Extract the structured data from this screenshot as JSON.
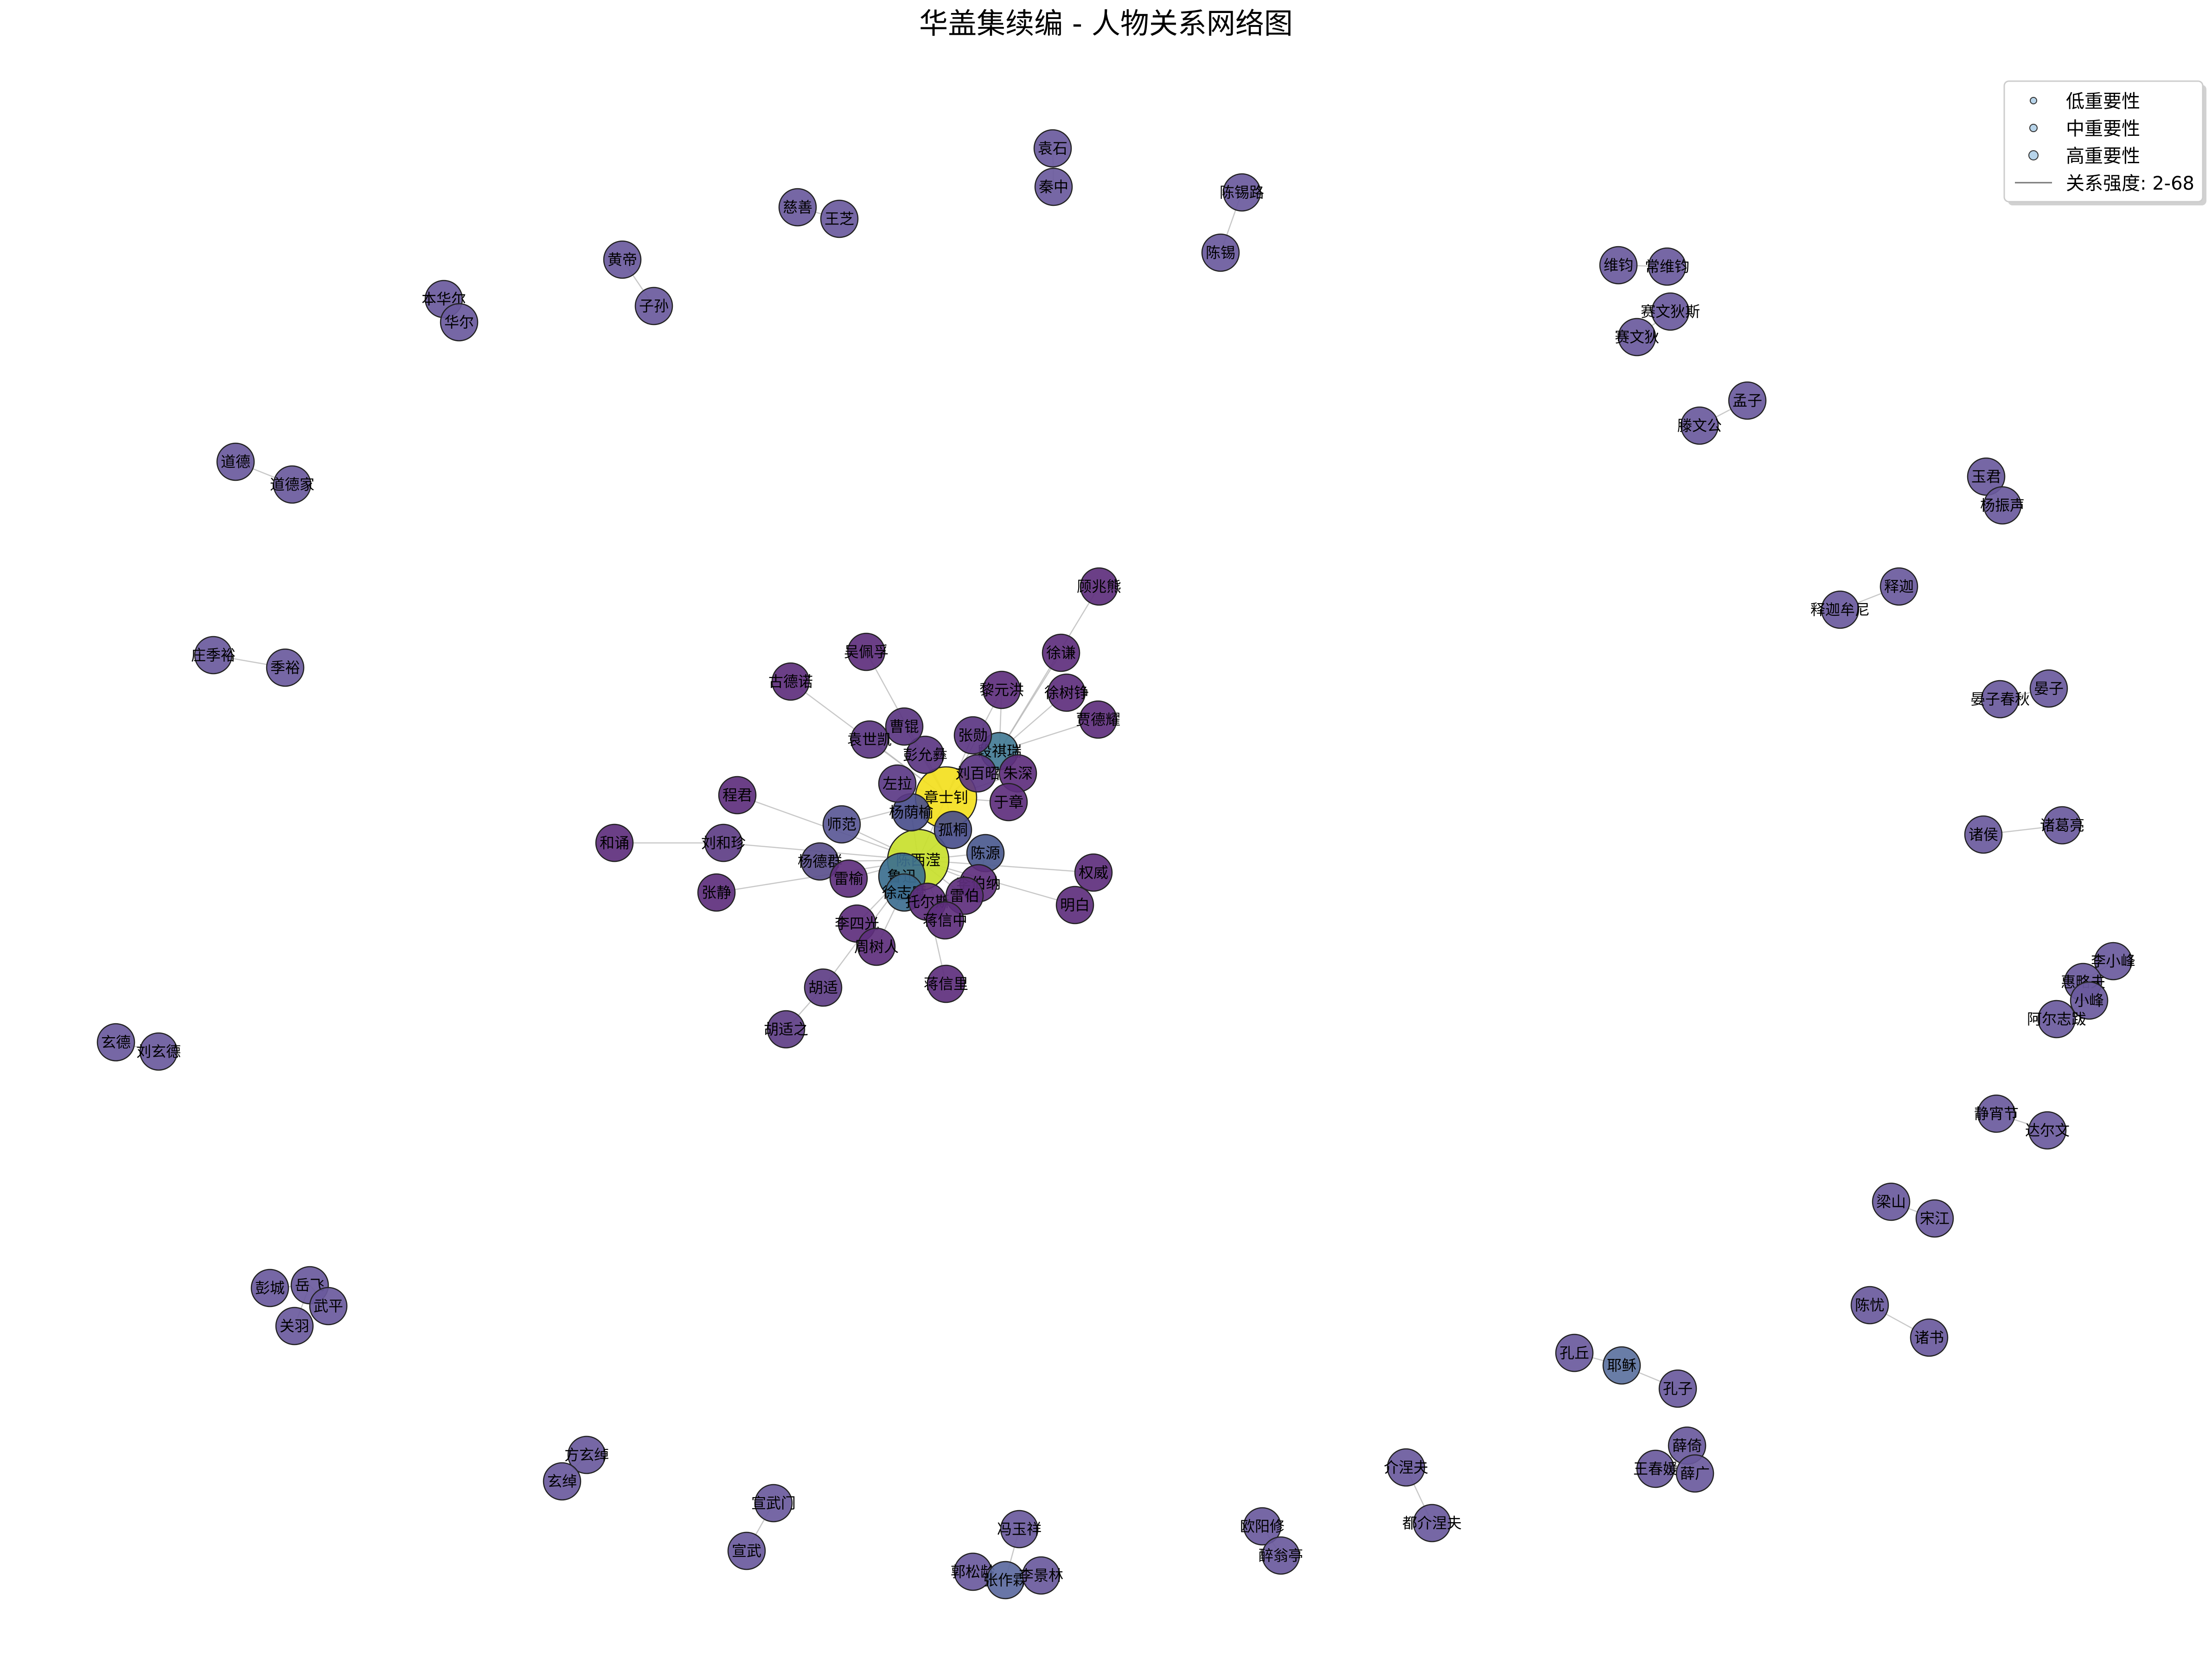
{
  "title": "华盖集续编 - 人物关系网络图",
  "legend": {
    "items": [
      {
        "label": "低重要性",
        "kind": "circle-small",
        "color": "#b7d4ea"
      },
      {
        "label": "中重要性",
        "kind": "circle-medium",
        "color": "#b7d4ea"
      },
      {
        "label": "高重要性",
        "kind": "circle-large",
        "color": "#b7d4ea"
      },
      {
        "label": "关系强度: 2-68",
        "kind": "line",
        "color": "#777777"
      }
    ]
  },
  "nodes": [
    {
      "id": "chenxiying",
      "label": "陈西滢",
      "color": "#c8e02c",
      "size": "xl"
    },
    {
      "id": "zhangshizhao",
      "label": "章士钊",
      "color": "#f3e01e",
      "size": "xl"
    },
    {
      "id": "luxun",
      "label": "鲁迅",
      "color": "#3c6f8f",
      "size": "l"
    },
    {
      "id": "xuzhimo",
      "label": "徐志摩",
      "color": "#3e6e90",
      "size": "m"
    },
    {
      "id": "duanqirui",
      "label": "段祺瑞",
      "color": "#437b95",
      "size": "m"
    },
    {
      "id": "chenyuan",
      "label": "陈源",
      "color": "#4b5a8f",
      "size": "m"
    },
    {
      "id": "yangyinyu",
      "label": "杨荫榆",
      "color": "#4a4f8c",
      "size": "m"
    },
    {
      "id": "guhong",
      "label": "孤桐",
      "color": "#4a4f8c",
      "size": "m"
    },
    {
      "id": "shifan",
      "label": "师范",
      "color": "#5a5896",
      "size": "m"
    },
    {
      "id": "yangdequn",
      "label": "杨德群",
      "color": "#5a4f8c",
      "size": "m"
    },
    {
      "id": "zuola",
      "label": "左拉",
      "color": "#5b3a85",
      "size": "m"
    },
    {
      "id": "peng",
      "label": "彭允彝",
      "color": "#5b3682",
      "size": "m"
    },
    {
      "id": "caokun",
      "label": "曹锟",
      "color": "#5b3682",
      "size": "m"
    },
    {
      "id": "yuanshikai",
      "label": "袁世凯",
      "color": "#5b3682",
      "size": "m"
    },
    {
      "id": "zhangxun",
      "label": "张勋",
      "color": "#5b3682",
      "size": "m"
    },
    {
      "id": "liubainong",
      "label": "刘百昭",
      "color": "#5b3682",
      "size": "m"
    },
    {
      "id": "zhushen",
      "label": "朱深",
      "color": "#5e2f7d",
      "size": "m"
    },
    {
      "id": "yuzhong",
      "label": "于章",
      "color": "#5e2f7d",
      "size": "m"
    },
    {
      "id": "leiyu",
      "label": "雷榆",
      "color": "#5e2f7d",
      "size": "m"
    },
    {
      "id": "tuosi",
      "label": "托尔斯",
      "color": "#5e2f7d",
      "size": "m"
    },
    {
      "id": "baibona",
      "label": "李伯纳",
      "color": "#5e2f7d",
      "size": "m"
    },
    {
      "id": "leibo",
      "label": "雷伯",
      "color": "#5e2f7d",
      "size": "m"
    },
    {
      "id": "jiangxinzhong",
      "label": "蒋信中",
      "color": "#5e2f7d",
      "size": "m"
    },
    {
      "id": "lisiguang",
      "label": "李四光",
      "color": "#5e2f7d",
      "size": "m"
    },
    {
      "id": "zhoushuren",
      "label": "周树人",
      "color": "#5e2f7d",
      "size": "m"
    },
    {
      "id": "huhu",
      "label": "胡适",
      "color": "#5e3e85",
      "size": "m"
    },
    {
      "id": "huguzhi",
      "label": "胡适之",
      "color": "#5e3e85",
      "size": "m"
    },
    {
      "id": "jiangxinli",
      "label": "蒋信里",
      "color": "#5e2f7d",
      "size": "m"
    },
    {
      "id": "liuhezhen",
      "label": "刘和珍",
      "color": "#5e3e85",
      "size": "m"
    },
    {
      "id": "chengjun",
      "label": "程君",
      "color": "#5e2f7d",
      "size": "m"
    },
    {
      "id": "hedao",
      "label": "和诵",
      "color": "#5e2f7d",
      "size": "m"
    },
    {
      "id": "zhangjing",
      "label": "张静",
      "color": "#5e2f7d",
      "size": "m"
    },
    {
      "id": "gudexun",
      "label": "古德诺",
      "color": "#5e2f7d",
      "size": "m"
    },
    {
      "id": "wupeifu",
      "label": "吴佩孚",
      "color": "#5e2f7d",
      "size": "m"
    },
    {
      "id": "liyuanhong",
      "label": "黎元洪",
      "color": "#5e2f7d",
      "size": "m"
    },
    {
      "id": "xuqian",
      "label": "徐谦",
      "color": "#5e2f7d",
      "size": "m"
    },
    {
      "id": "guzhaoxiong",
      "label": "顾兆熊",
      "color": "#5e2f7d",
      "size": "m"
    },
    {
      "id": "xushuzheng",
      "label": "徐树铮",
      "color": "#5e2f7d",
      "size": "m"
    },
    {
      "id": "jiadeyao",
      "label": "贾德耀",
      "color": "#5e2f7d",
      "size": "m"
    },
    {
      "id": "quanwei",
      "label": "权威",
      "color": "#5e2f7d",
      "size": "m"
    },
    {
      "id": "mingbai",
      "label": "明白",
      "color": "#5e2f7d",
      "size": "m"
    },
    {
      "id": "yuanshi",
      "label": "袁石",
      "color": "#6a5a9d",
      "size": "m"
    },
    {
      "id": "qinzhong",
      "label": "秦中",
      "color": "#6a5a9d",
      "size": "m"
    },
    {
      "id": "cishan",
      "label": "慈善",
      "color": "#6a5a9d",
      "size": "m"
    },
    {
      "id": "wangzhi",
      "label": "王芝",
      "color": "#6a5a9d",
      "size": "m"
    },
    {
      "id": "chenxilu",
      "label": "陈锡路",
      "color": "#6a5a9d",
      "size": "m"
    },
    {
      "id": "chenxi",
      "label": "陈锡",
      "color": "#6a5a9d",
      "size": "m"
    },
    {
      "id": "huangdi",
      "label": "黄帝",
      "color": "#6a5a9d",
      "size": "m"
    },
    {
      "id": "zisun",
      "label": "子孙",
      "color": "#6a5a9d",
      "size": "m"
    },
    {
      "id": "benhuaer",
      "label": "本华尔",
      "color": "#6a5a9d",
      "size": "m"
    },
    {
      "id": "huaer",
      "label": "华尔",
      "color": "#6a5a9d",
      "size": "m"
    },
    {
      "id": "weijun",
      "label": "维钧",
      "color": "#6a5a9d",
      "size": "m"
    },
    {
      "id": "changweijun",
      "label": "常维钧",
      "color": "#6a5a9d",
      "size": "m"
    },
    {
      "id": "saiwendisi",
      "label": "赛文狄斯",
      "color": "#6a5a9d",
      "size": "m"
    },
    {
      "id": "saiwendi",
      "label": "赛文狄",
      "color": "#6a5a9d",
      "size": "m"
    },
    {
      "id": "mengzi",
      "label": "孟子",
      "color": "#6a5a9d",
      "size": "m"
    },
    {
      "id": "tengwengong",
      "label": "滕文公",
      "color": "#6a5a9d",
      "size": "m"
    },
    {
      "id": "daode",
      "label": "道德",
      "color": "#6a5a9d",
      "size": "m"
    },
    {
      "id": "daodejia",
      "label": "道德家",
      "color": "#6a5a9d",
      "size": "m"
    },
    {
      "id": "yujun",
      "label": "玉君",
      "color": "#6a5a9d",
      "size": "m"
    },
    {
      "id": "yangzhensheng",
      "label": "杨振声",
      "color": "#6a5a9d",
      "size": "m"
    },
    {
      "id": "shijia",
      "label": "释迦",
      "color": "#6a5a9d",
      "size": "m"
    },
    {
      "id": "shijiamouni",
      "label": "释迦牟尼",
      "color": "#6a5a9d",
      "size": "m"
    },
    {
      "id": "zhuangjiyu",
      "label": "庄季裕",
      "color": "#6a5a9d",
      "size": "m"
    },
    {
      "id": "jiyu",
      "label": "季裕",
      "color": "#6a5a9d",
      "size": "m"
    },
    {
      "id": "yanzi",
      "label": "晏子",
      "color": "#6a5a9d",
      "size": "m"
    },
    {
      "id": "yanzichunqiu",
      "label": "晏子春秋",
      "color": "#6a5a9d",
      "size": "m"
    },
    {
      "id": "zhuhou",
      "label": "诸侯",
      "color": "#6a5a9d",
      "size": "m"
    },
    {
      "id": "zhugeliang",
      "label": "诸葛亮",
      "color": "#6a5a9d",
      "size": "m"
    },
    {
      "id": "lixiaofeng",
      "label": "李小峰",
      "color": "#6a5a9d",
      "size": "m"
    },
    {
      "id": "huiluefu",
      "label": "惠略夫",
      "color": "#6a5a9d",
      "size": "m"
    },
    {
      "id": "xiaofeng",
      "label": "小峰",
      "color": "#6a5a9d",
      "size": "m"
    },
    {
      "id": "aerzhiba",
      "label": "阿尔志跋",
      "color": "#6a5a9d",
      "size": "m"
    },
    {
      "id": "xuande",
      "label": "玄德",
      "color": "#6a5a9d",
      "size": "m"
    },
    {
      "id": "liuxuande",
      "label": "刘玄德",
      "color": "#6a5a9d",
      "size": "m"
    },
    {
      "id": "jingxiao",
      "label": "静宵节",
      "color": "#6a5a9d",
      "size": "m"
    },
    {
      "id": "daerwen",
      "label": "达尔文",
      "color": "#6a5a9d",
      "size": "m"
    },
    {
      "id": "liangshan",
      "label": "梁山",
      "color": "#6a5a9d",
      "size": "m"
    },
    {
      "id": "songjiang",
      "label": "宋江",
      "color": "#6a5a9d",
      "size": "m"
    },
    {
      "id": "pengcheng",
      "label": "彭城",
      "color": "#6a5a9d",
      "size": "m"
    },
    {
      "id": "yuefei",
      "label": "岳飞",
      "color": "#6a5a9d",
      "size": "m"
    },
    {
      "id": "wuping",
      "label": "武平",
      "color": "#6a5a9d",
      "size": "m"
    },
    {
      "id": "guanyu",
      "label": "关羽",
      "color": "#6a5a9d",
      "size": "m"
    },
    {
      "id": "chenyou",
      "label": "陈忧",
      "color": "#6a5a9d",
      "size": "m"
    },
    {
      "id": "zhushu",
      "label": "诸书",
      "color": "#6a5a9d",
      "size": "m"
    },
    {
      "id": "kongqiu",
      "label": "孔丘",
      "color": "#6a5a9d",
      "size": "m"
    },
    {
      "id": "yesu",
      "label": "耶稣",
      "color": "#5c72a0",
      "size": "m"
    },
    {
      "id": "kongzi",
      "label": "孔子",
      "color": "#6a5a9d",
      "size": "m"
    },
    {
      "id": "fangxuanchuo",
      "label": "方玄绰",
      "color": "#6a5a9d",
      "size": "m"
    },
    {
      "id": "xuanchuo",
      "label": "玄绰",
      "color": "#6a5a9d",
      "size": "m"
    },
    {
      "id": "xuanwumen",
      "label": "宣武门",
      "color": "#6a5a9d",
      "size": "m"
    },
    {
      "id": "xuanwu",
      "label": "宣武",
      "color": "#6a5a9d",
      "size": "m"
    },
    {
      "id": "fengyuxiang",
      "label": "冯玉祥",
      "color": "#6a5a9d",
      "size": "m"
    },
    {
      "id": "guosongling",
      "label": "郭松龄",
      "color": "#6a5a9d",
      "size": "m"
    },
    {
      "id": "zhangzuolin",
      "label": "张作霖",
      "color": "#5c6aa0",
      "size": "m"
    },
    {
      "id": "lijinglin",
      "label": "李景林",
      "color": "#6a5a9d",
      "size": "m"
    },
    {
      "id": "ouyangxiu",
      "label": "欧阳修",
      "color": "#6a5a9d",
      "size": "m"
    },
    {
      "id": "zuiwengting",
      "label": "醉翁亭",
      "color": "#6a5a9d",
      "size": "m"
    },
    {
      "id": "jieniefu",
      "label": "介涅夫",
      "color": "#6a5a9d",
      "size": "m"
    },
    {
      "id": "dujieniefu",
      "label": "都介涅夫",
      "color": "#6a5a9d",
      "size": "m"
    },
    {
      "id": "xueyi",
      "label": "薛倚",
      "color": "#6a5a9d",
      "size": "m"
    },
    {
      "id": "wangchunyuan",
      "label": "王春媛",
      "color": "#6a5a9d",
      "size": "m"
    },
    {
      "id": "xueguang",
      "label": "薛广",
      "color": "#6a5a9d",
      "size": "m"
    }
  ],
  "edges": [
    [
      "chenxiying",
      "zhangshizhao"
    ],
    [
      "chenxiying",
      "luxun"
    ],
    [
      "chenxiying",
      "xuzhimo"
    ],
    [
      "chenxiying",
      "chenyuan"
    ],
    [
      "chenxiying",
      "yangyinyu"
    ],
    [
      "chenxiying",
      "shifan"
    ],
    [
      "chenxiying",
      "yangdequn"
    ],
    [
      "chenxiying",
      "leiyu"
    ],
    [
      "chenxiying",
      "tuosi"
    ],
    [
      "chenxiying",
      "lisiguang"
    ],
    [
      "chenxiying",
      "zhoushuren"
    ],
    [
      "chenxiying",
      "huhu"
    ],
    [
      "chenxiying",
      "jiangxinzhong"
    ],
    [
      "chenxiying",
      "baibona"
    ],
    [
      "chenxiying",
      "leibo"
    ],
    [
      "chenxiying",
      "quanwei"
    ],
    [
      "chenxiying",
      "mingbai"
    ],
    [
      "chenxiying",
      "zhangjing"
    ],
    [
      "chenxiying",
      "liuhezhen"
    ],
    [
      "chenxiying",
      "chengjun"
    ],
    [
      "chenxiying",
      "guhong"
    ],
    [
      "chenxiying",
      "jiangxinli"
    ],
    [
      "zhangshizhao",
      "duanqirui"
    ],
    [
      "zhangshizhao",
      "guhong"
    ],
    [
      "zhangshizhao",
      "zuola"
    ],
    [
      "zhangshizhao",
      "peng"
    ],
    [
      "zhangshizhao",
      "caokun"
    ],
    [
      "zhangshizhao",
      "yuanshikai"
    ],
    [
      "zhangshizhao",
      "zhangxun"
    ],
    [
      "zhangshizhao",
      "liubainong"
    ],
    [
      "zhangshizhao",
      "zhushen"
    ],
    [
      "zhangshizhao",
      "yuzhong"
    ],
    [
      "zhangshizhao",
      "gudexun"
    ],
    [
      "zhangshizhao",
      "wupeifu"
    ],
    [
      "zhangshizhao",
      "liyuanhong"
    ],
    [
      "zhangshizhao",
      "yangyinyu"
    ],
    [
      "zhangshizhao",
      "shifan"
    ],
    [
      "duanqirui",
      "xuqian"
    ],
    [
      "duanqirui",
      "guzhaoxiong"
    ],
    [
      "duanqirui",
      "xushuzheng"
    ],
    [
      "duanqirui",
      "jiadeyao"
    ],
    [
      "duanqirui",
      "zhushen"
    ],
    [
      "duanqirui",
      "liyuanhong"
    ],
    [
      "liuhezhen",
      "hedao"
    ],
    [
      "huhu",
      "huguzhi"
    ],
    [
      "luxun",
      "xuzhimo"
    ],
    [
      "chenyuan",
      "baibona"
    ],
    [
      "yuanshi",
      "qinzhong"
    ],
    [
      "cishan",
      "wangzhi"
    ],
    [
      "chenxilu",
      "chenxi"
    ],
    [
      "huangdi",
      "zisun"
    ],
    [
      "benhuaer",
      "huaer"
    ],
    [
      "weijun",
      "changweijun"
    ],
    [
      "saiwendisi",
      "saiwendi"
    ],
    [
      "mengzi",
      "tengwengong"
    ],
    [
      "daode",
      "daodejia"
    ],
    [
      "yujun",
      "yangzhensheng"
    ],
    [
      "shijia",
      "shijiamouni"
    ],
    [
      "zhuangjiyu",
      "jiyu"
    ],
    [
      "yanzi",
      "yanzichunqiu"
    ],
    [
      "zhuhou",
      "zhugeliang"
    ],
    [
      "lixiaofeng",
      "huiluefu"
    ],
    [
      "huiluefu",
      "xiaofeng"
    ],
    [
      "xiaofeng",
      "aerzhiba"
    ],
    [
      "xuande",
      "liuxuande"
    ],
    [
      "jingxiao",
      "daerwen"
    ],
    [
      "liangshan",
      "songjiang"
    ],
    [
      "pengcheng",
      "yuefei"
    ],
    [
      "yuefei",
      "wuping"
    ],
    [
      "yuefei",
      "guanyu"
    ],
    [
      "chenyou",
      "zhushu"
    ],
    [
      "kongqiu",
      "yesu"
    ],
    [
      "yesu",
      "kongzi"
    ],
    [
      "fangxuanchuo",
      "xuanchuo"
    ],
    [
      "xuanwumen",
      "xuanwu"
    ],
    [
      "fengyuxiang",
      "zhangzuolin"
    ],
    [
      "guosongling",
      "zhangzuolin"
    ],
    [
      "zhangzuolin",
      "lijinglin"
    ],
    [
      "ouyangxiu",
      "zuiwengting"
    ],
    [
      "jieniefu",
      "dujieniefu"
    ],
    [
      "xueyi",
      "wangchunyuan"
    ],
    [
      "xueyi",
      "xueguang"
    ],
    [
      "wangchunyuan",
      "xueguang"
    ]
  ]
}
